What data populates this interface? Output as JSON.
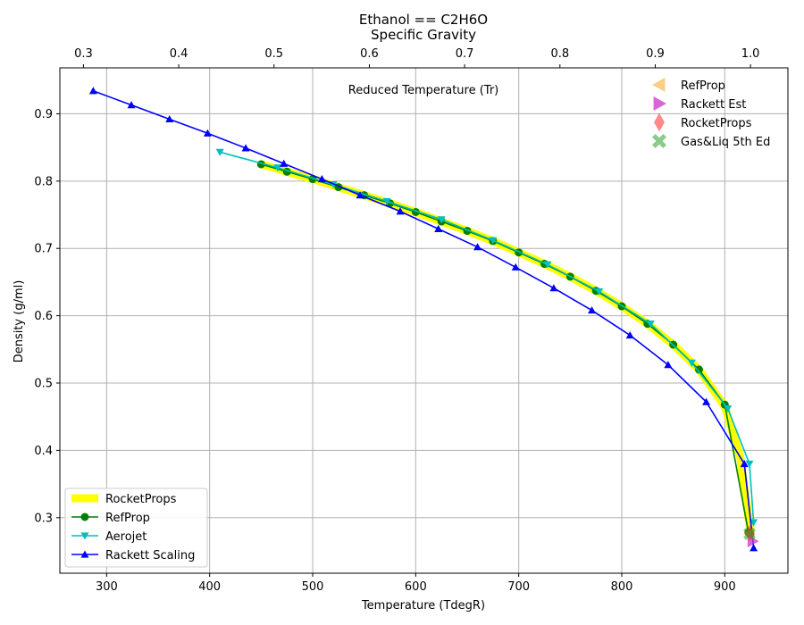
{
  "chart_data": {
    "type": "line",
    "title": "Ethanol == C2H6O",
    "top_axis_label": "Specific Gravity",
    "xlabel": "Temperature (TdegR)",
    "ylabel": "Density (g/ml)",
    "annotation": "Reduced Temperature (Tr)",
    "xlim": [
      254.6,
      961.3
    ],
    "ylim": [
      0.2175,
      0.9682
    ],
    "x_ticks": [
      300,
      400,
      500,
      600,
      700,
      800,
      900
    ],
    "y_ticks": [
      0.3,
      0.4,
      0.5,
      0.6,
      0.7,
      0.8,
      0.9
    ],
    "y_tick_labels": [
      "0.3",
      "0.4",
      "0.5",
      "0.6",
      "0.7",
      "0.8",
      "0.9"
    ],
    "top_ticks": [
      0.3,
      0.4,
      0.5,
      0.6,
      0.7,
      0.8,
      0.9,
      1.0
    ],
    "top_tick_labels": [
      "0.3",
      "0.4",
      "0.5",
      "0.6",
      "0.7",
      "0.8",
      "0.9",
      "1.0"
    ],
    "top_axis_tc": 925.0,
    "grid": true,
    "legend_top_right_location": "top-right",
    "legend_bottom_left_location": "lower-left",
    "series": [
      {
        "name": "RocketProps",
        "color": "#ffff00",
        "marker": "none",
        "x": [
          450,
          475,
          500,
          525,
          550,
          575,
          600,
          625,
          650,
          675,
          700,
          725,
          750,
          775,
          800,
          825,
          850,
          875,
          900,
          915,
          925
        ],
        "y": [
          0.825,
          0.814,
          0.803,
          0.791,
          0.779,
          0.767,
          0.754,
          0.74,
          0.726,
          0.711,
          0.694,
          0.677,
          0.658,
          0.637,
          0.614,
          0.588,
          0.557,
          0.52,
          0.465,
          0.39,
          0.278
        ]
      },
      {
        "name": "RefProp",
        "color": "#008000",
        "marker": "circle",
        "x": [
          450,
          475,
          500,
          525,
          550,
          575,
          600,
          625,
          650,
          675,
          700,
          725,
          750,
          775,
          800,
          825,
          850,
          875,
          900,
          923,
          925
        ],
        "y": [
          0.825,
          0.814,
          0.803,
          0.791,
          0.779,
          0.767,
          0.754,
          0.74,
          0.726,
          0.711,
          0.694,
          0.677,
          0.658,
          0.637,
          0.614,
          0.588,
          0.557,
          0.52,
          0.468,
          0.278,
          0.276
        ]
      },
      {
        "name": "Aerojet",
        "color": "#00bfbf",
        "marker": "triangle-down",
        "x": [
          410,
          466,
          520,
          572,
          625,
          675,
          728,
          778,
          828,
          868,
          903,
          924,
          928
        ],
        "y": [
          0.843,
          0.82,
          0.795,
          0.77,
          0.743,
          0.712,
          0.676,
          0.636,
          0.588,
          0.53,
          0.462,
          0.38,
          0.293
        ]
      },
      {
        "name": "Rackett Scaling",
        "color": "#0000ff",
        "marker": "triangle-up",
        "x": [
          287,
          324,
          361,
          398,
          435,
          472,
          509,
          546,
          585,
          622,
          660,
          697,
          734,
          771,
          808,
          845,
          882,
          919,
          928
        ],
        "y": [
          0.934,
          0.913,
          0.892,
          0.871,
          0.849,
          0.826,
          0.803,
          0.779,
          0.755,
          0.729,
          0.702,
          0.672,
          0.641,
          0.608,
          0.571,
          0.527,
          0.472,
          0.38,
          0.255
        ]
      }
    ],
    "critical_points": [
      {
        "name": "RefProp",
        "color": "#f5a623",
        "marker": "triangle-left",
        "x": 924,
        "y": 0.276
      },
      {
        "name": "Rackett Est",
        "color": "#cc33cc",
        "marker": "triangle-right",
        "x": 927,
        "y": 0.265
      },
      {
        "name": "RocketProps",
        "color": "#ff2a2a",
        "marker": "diamond",
        "x": 924,
        "y": 0.277
      },
      {
        "name": "Gas&Liq 5th Ed",
        "color": "#2ca02c",
        "marker": "x",
        "x": 924,
        "y": 0.276
      }
    ]
  }
}
